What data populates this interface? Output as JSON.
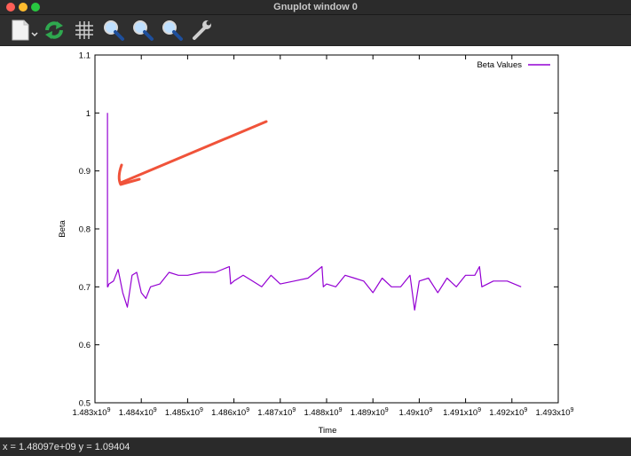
{
  "window": {
    "title": "Gnuplot window 0"
  },
  "toolbar": {
    "items": [
      {
        "name": "export-icon"
      },
      {
        "name": "replot-icon"
      },
      {
        "name": "grid-icon"
      },
      {
        "name": "zoom-back-icon"
      },
      {
        "name": "zoom-forward-icon"
      },
      {
        "name": "unzoom-icon"
      },
      {
        "name": "settings-icon"
      }
    ]
  },
  "status": {
    "text": "x = 1.48097e+09 y = 1.09404"
  },
  "colors": {
    "series": "#9400d3",
    "annotation_arrow": "#f0533a"
  },
  "chart_data": {
    "type": "line",
    "title": "",
    "xlabel": "Time",
    "ylabel": "Beta",
    "xlim": [
      1483000000.0,
      1493000000.0
    ],
    "ylim": [
      0.5,
      1.1
    ],
    "x_tick_labels": [
      "1.483x10",
      "1.484x10",
      "1.485x10",
      "1.486x10",
      "1.487x10",
      "1.488x10",
      "1.489x10",
      "1.49x10",
      "1.491x10",
      "1.492x10",
      "1.493x10"
    ],
    "x_tick_exponent": "9",
    "y_tick_labels": [
      "0.5",
      "0.6",
      "0.7",
      "0.8",
      "0.9",
      "1",
      "1.1"
    ],
    "legend": "top-right",
    "grid": false,
    "series": [
      {
        "name": "Beta Values",
        "x": [
          1483270000.0,
          1483270000.0,
          1483280000.0,
          1483300000.0,
          1483400000.0,
          1483500000.0,
          1483600000.0,
          1483700000.0,
          1483800000.0,
          1483900000.0,
          1484000000.0,
          1484100000.0,
          1484200000.0,
          1484400000.0,
          1484600000.0,
          1484800000.0,
          1485000000.0,
          1485300000.0,
          1485600000.0,
          1485900000.0,
          1485930000.0,
          1486000000.0,
          1486200000.0,
          1486400000.0,
          1486600000.0,
          1486800000.0,
          1487000000.0,
          1487300000.0,
          1487600000.0,
          1487900000.0,
          1487930000.0,
          1488000000.0,
          1488200000.0,
          1488400000.0,
          1488600000.0,
          1488800000.0,
          1489000000.0,
          1489200000.0,
          1489400000.0,
          1489600000.0,
          1489800000.0,
          1489900000.0,
          1490000000.0,
          1490200000.0,
          1490400000.0,
          1490600000.0,
          1490800000.0,
          1491000000.0,
          1491200000.0,
          1491300000.0,
          1491350000.0,
          1491600000.0,
          1491900000.0,
          1492200000.0
        ],
        "values": [
          1.0,
          0.7,
          0.7,
          0.705,
          0.71,
          0.73,
          0.69,
          0.665,
          0.72,
          0.725,
          0.69,
          0.68,
          0.7,
          0.705,
          0.725,
          0.72,
          0.72,
          0.725,
          0.725,
          0.735,
          0.705,
          0.71,
          0.72,
          0.71,
          0.7,
          0.72,
          0.705,
          0.71,
          0.715,
          0.735,
          0.7,
          0.705,
          0.7,
          0.72,
          0.715,
          0.71,
          0.69,
          0.715,
          0.7,
          0.7,
          0.72,
          0.66,
          0.71,
          0.715,
          0.69,
          0.715,
          0.7,
          0.72,
          0.72,
          0.735,
          0.7,
          0.71,
          0.71,
          0.7
        ]
      }
    ]
  }
}
